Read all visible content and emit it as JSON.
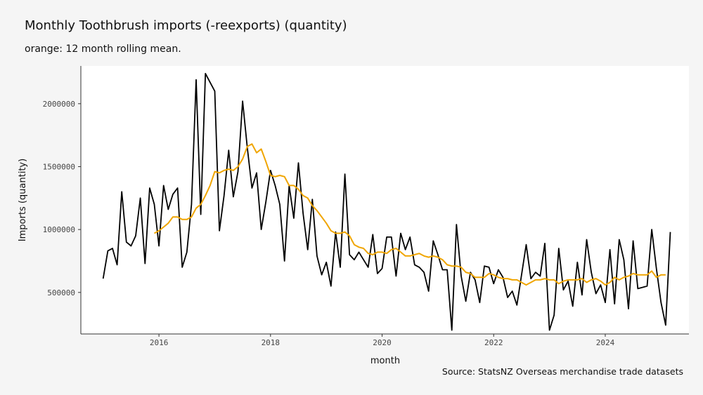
{
  "title": "Monthly Toothbrush imports (-reexports) (quantity)",
  "subtitle": "orange: 12 month rolling mean.",
  "caption": "Source: StatsNZ Overseas merchandise trade datasets",
  "colors": {
    "raw": "#000000",
    "rolling": "#f0a500",
    "panel": "#ffffff",
    "background": "#f5f5f5"
  },
  "chart_data": {
    "type": "line",
    "xlabel": "month",
    "ylabel": "Imports (quantity)",
    "x_start": "2015-01",
    "x_end": "2025-03",
    "xlim": [
      2014.6,
      2025.5
    ],
    "ylim": [
      170000,
      2300000
    ],
    "x_ticks": [
      2016,
      2018,
      2020,
      2022,
      2024
    ],
    "x_tick_labels": [
      "2016",
      "2018",
      "2020",
      "2022",
      "2024"
    ],
    "y_ticks": [
      500000,
      1000000,
      1500000,
      2000000
    ],
    "y_tick_labels": [
      "500000",
      "1000000",
      "1500000",
      "2000000"
    ],
    "grid": false,
    "series": [
      {
        "values": [
          610000,
          830000,
          850000,
          720000,
          1300000,
          900000,
          870000,
          950000,
          1250000,
          730000,
          1330000,
          1200000,
          870000,
          1350000,
          1160000,
          1280000,
          1330000,
          700000,
          820000,
          1200000,
          2190000,
          1120000,
          2240000,
          2170000,
          2100000,
          990000,
          1270000,
          1630000,
          1260000,
          1460000,
          2020000,
          1650000,
          1330000,
          1450000,
          1000000,
          1220000,
          1470000,
          1350000,
          1200000,
          750000,
          1350000,
          1090000,
          1530000,
          1130000,
          840000,
          1240000,
          790000,
          640000,
          740000,
          550000,
          980000,
          700000,
          1440000,
          800000,
          760000,
          820000,
          760000,
          700000,
          960000,
          650000,
          690000,
          940000,
          940000,
          630000,
          970000,
          840000,
          940000,
          720000,
          700000,
          660000,
          510000,
          910000,
          800000,
          680000,
          680000,
          200000,
          1040000,
          630000,
          430000,
          660000,
          600000,
          420000,
          710000,
          700000,
          570000,
          680000,
          620000,
          460000,
          510000,
          400000,
          640000,
          880000,
          610000,
          660000,
          630000,
          890000,
          200000,
          320000,
          850000,
          520000,
          590000,
          390000,
          740000,
          480000,
          920000,
          660000,
          490000,
          560000,
          420000,
          840000,
          410000,
          920000,
          760000,
          370000,
          910000,
          530000,
          540000,
          550000,
          1000000,
          690000,
          420000,
          240000,
          980000
        ]
      },
      {
        "values": [
          null,
          null,
          null,
          null,
          null,
          null,
          null,
          null,
          null,
          null,
          null,
          970000,
          990000,
          1020000,
          1050000,
          1100000,
          1100000,
          1080000,
          1080000,
          1100000,
          1170000,
          1200000,
          1270000,
          1350000,
          1460000,
          1450000,
          1470000,
          1480000,
          1470000,
          1500000,
          1560000,
          1660000,
          1680000,
          1610000,
          1640000,
          1540000,
          1430000,
          1420000,
          1430000,
          1420000,
          1350000,
          1350000,
          1320000,
          1270000,
          1250000,
          1190000,
          1150000,
          1100000,
          1050000,
          990000,
          970000,
          970000,
          980000,
          950000,
          880000,
          860000,
          850000,
          810000,
          800000,
          820000,
          820000,
          810000,
          840000,
          850000,
          820000,
          790000,
          790000,
          800000,
          810000,
          790000,
          780000,
          790000,
          780000,
          760000,
          720000,
          710000,
          710000,
          700000,
          660000,
          650000,
          620000,
          620000,
          620000,
          650000,
          640000,
          620000,
          610000,
          610000,
          600000,
          600000,
          580000,
          560000,
          580000,
          600000,
          600000,
          610000,
          600000,
          600000,
          570000,
          590000,
          600000,
          600000,
          600000,
          610000,
          580000,
          600000,
          610000,
          590000,
          560000,
          580000,
          620000,
          600000,
          620000,
          630000,
          650000,
          640000,
          640000,
          640000,
          670000,
          620000,
          640000,
          640000
        ]
      }
    ]
  }
}
